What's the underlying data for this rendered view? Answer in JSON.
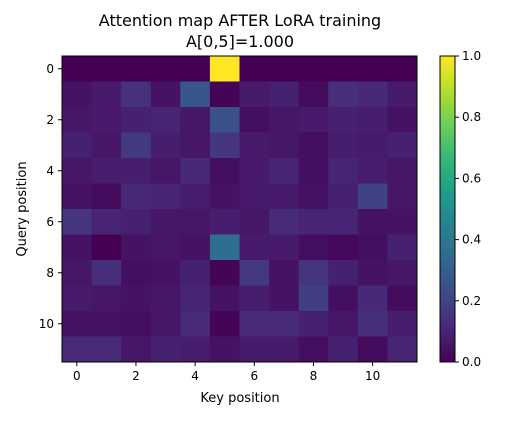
{
  "chart_data": {
    "type": "heatmap",
    "title": "Attention map AFTER LoRA training",
    "subtitle": "A[0,5]=1.000",
    "xlabel": "Key position",
    "ylabel": "Query position",
    "x_ticks": [
      0,
      2,
      4,
      6,
      8,
      10
    ],
    "y_ticks": [
      0,
      2,
      4,
      6,
      8,
      10
    ],
    "colorbar": {
      "min": 0.0,
      "max": 1.0,
      "ticks": [
        "0.0",
        "0.2",
        "0.4",
        "0.6",
        "0.8",
        "1.0"
      ],
      "colormap": "viridis"
    },
    "colormap_stops": [
      "#440154",
      "#482878",
      "#3e4989",
      "#31688e",
      "#26828e",
      "#1f9e89",
      "#35b779",
      "#6ece58",
      "#b5de2b",
      "#fde725"
    ],
    "values": [
      [
        0.0,
        0.0,
        0.0,
        0.0,
        0.0,
        1.0,
        0.0,
        0.0,
        0.0,
        0.0,
        0.0,
        0.0
      ],
      [
        0.05,
        0.07,
        0.14,
        0.05,
        0.27,
        0.01,
        0.07,
        0.09,
        0.03,
        0.13,
        0.11,
        0.07
      ],
      [
        0.06,
        0.07,
        0.09,
        0.1,
        0.06,
        0.25,
        0.04,
        0.06,
        0.07,
        0.09,
        0.08,
        0.05
      ],
      [
        0.09,
        0.06,
        0.17,
        0.08,
        0.06,
        0.16,
        0.07,
        0.06,
        0.04,
        0.08,
        0.07,
        0.09
      ],
      [
        0.06,
        0.08,
        0.08,
        0.06,
        0.11,
        0.04,
        0.07,
        0.1,
        0.04,
        0.1,
        0.08,
        0.06
      ],
      [
        0.05,
        0.03,
        0.11,
        0.1,
        0.08,
        0.05,
        0.07,
        0.07,
        0.05,
        0.09,
        0.2,
        0.06
      ],
      [
        0.15,
        0.1,
        0.09,
        0.06,
        0.06,
        0.08,
        0.06,
        0.12,
        0.1,
        0.1,
        0.05,
        0.05
      ],
      [
        0.05,
        0.0,
        0.05,
        0.06,
        0.05,
        0.36,
        0.07,
        0.07,
        0.04,
        0.02,
        0.04,
        0.09
      ],
      [
        0.06,
        0.13,
        0.04,
        0.05,
        0.09,
        0.01,
        0.17,
        0.05,
        0.15,
        0.09,
        0.05,
        0.06
      ],
      [
        0.07,
        0.06,
        0.05,
        0.06,
        0.1,
        0.05,
        0.08,
        0.05,
        0.19,
        0.04,
        0.11,
        0.03
      ],
      [
        0.05,
        0.05,
        0.04,
        0.06,
        0.12,
        0.01,
        0.12,
        0.12,
        0.09,
        0.06,
        0.13,
        0.08
      ],
      [
        0.12,
        0.12,
        0.06,
        0.09,
        0.08,
        0.05,
        0.07,
        0.07,
        0.04,
        0.09,
        0.03,
        0.1
      ]
    ]
  }
}
